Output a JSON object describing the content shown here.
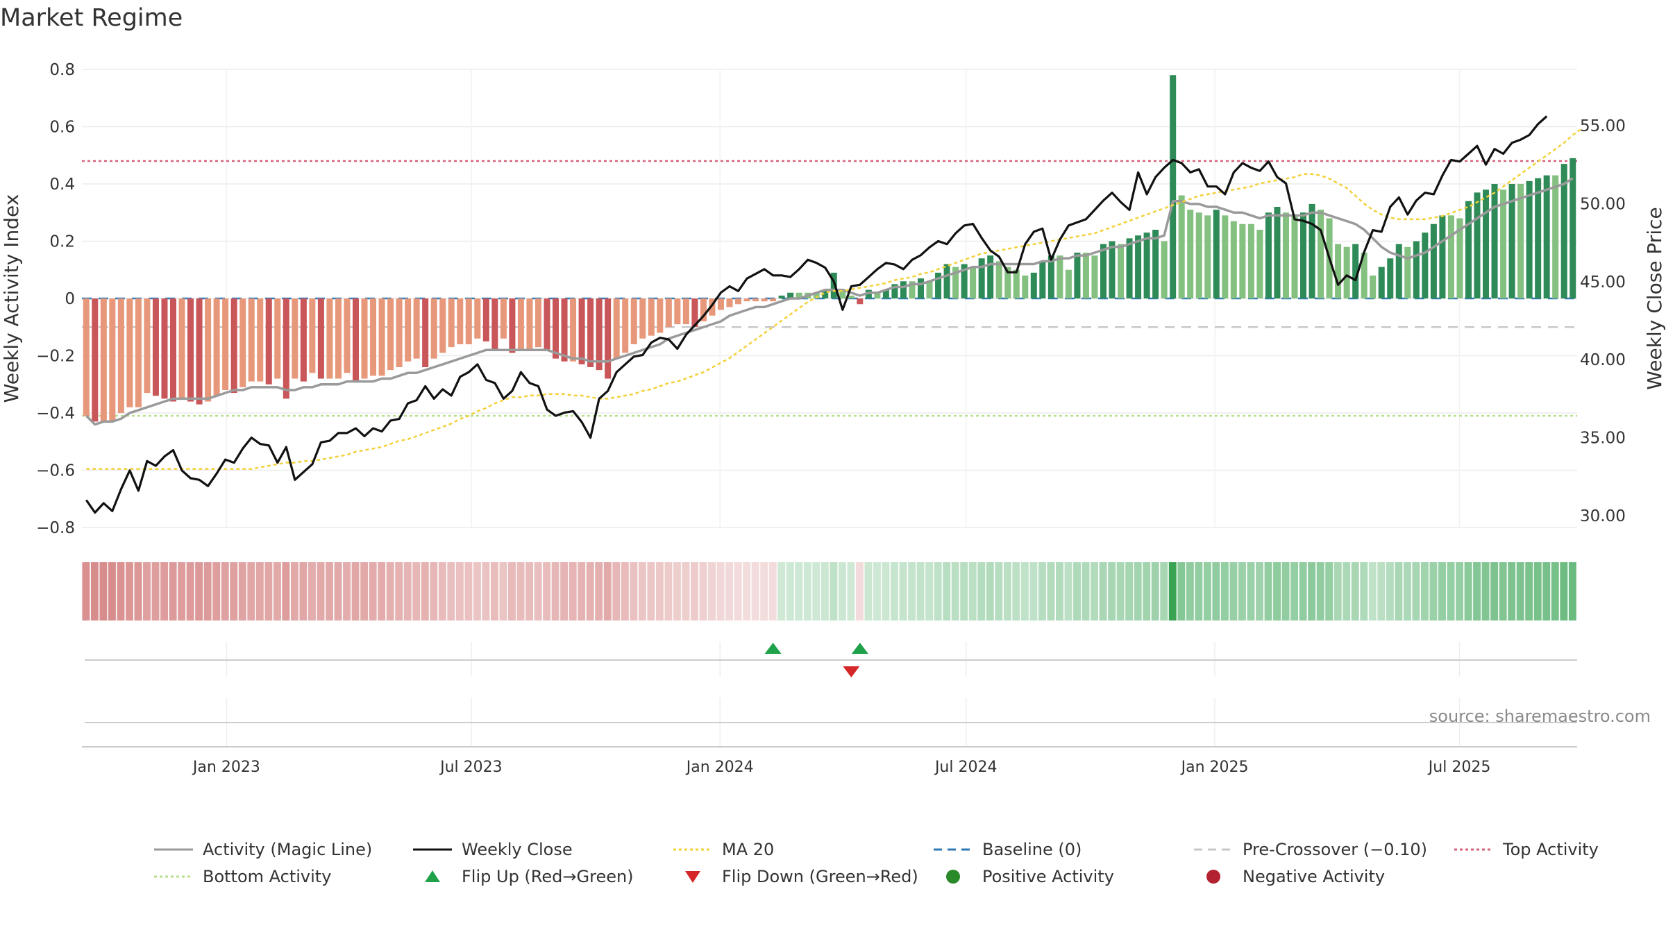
{
  "title": "Market Regime",
  "source_text": "source: sharemaestro.com",
  "chart_data": {
    "type": "bar",
    "title": "Market Regime",
    "ylabel": "Weekly Activity Index",
    "y2label": "Weekly Close Price",
    "ylim": [
      -0.8,
      0.8
    ],
    "y2lim": [
      30,
      55
    ],
    "yticks": [
      "0.8",
      "0.6",
      "0.4",
      "0.2",
      "0",
      "−0.2",
      "−0.4",
      "−0.6",
      "−0.8"
    ],
    "y2ticks": [
      "55.00",
      "50.00",
      "45.00",
      "40.00",
      "35.00",
      "30.00"
    ],
    "x_ticks": [
      "Jan 2023",
      "Jul 2023",
      "Jan 2024",
      "Jul 2024",
      "Jan 2025",
      "Jul 2025"
    ],
    "x_start": "2022-09-16",
    "x_end": "2025-09-26",
    "grid": true,
    "legend_position": "bottom",
    "reference_lines": {
      "baseline": 0,
      "pre_crossover": -0.1,
      "top_activity": 0.48,
      "bottom_activity": -0.41
    },
    "colors": {
      "strong_negative": "#c95658",
      "weak_negative": "#e8987a",
      "weak_positive": "#84c07f",
      "strong_positive": "#2e8b57",
      "magic_line": "#9a9a9a",
      "weekly_close": "#111111",
      "ma20": "#f2d13a",
      "baseline": "#2f78b5",
      "pre_crossover": "#c8c8c8",
      "top_activity": "#d6607a",
      "bottom_activity": "#b5df8a",
      "flip_up": "#1fa24a",
      "flip_down": "#d62728"
    },
    "series": [
      {
        "name": "Weekly Activity Index",
        "values": [
          -0.41,
          -0.43,
          -0.43,
          -0.43,
          -0.4,
          -0.38,
          -0.38,
          -0.33,
          -0.34,
          -0.35,
          -0.36,
          -0.35,
          -0.36,
          -0.37,
          -0.36,
          -0.34,
          -0.32,
          -0.33,
          -0.31,
          -0.29,
          -0.29,
          -0.3,
          -0.28,
          -0.35,
          -0.28,
          -0.29,
          -0.26,
          -0.28,
          -0.28,
          -0.28,
          -0.26,
          -0.29,
          -0.28,
          -0.27,
          -0.27,
          -0.25,
          -0.24,
          -0.22,
          -0.21,
          -0.24,
          -0.21,
          -0.19,
          -0.17,
          -0.16,
          -0.16,
          -0.14,
          -0.15,
          -0.18,
          -0.14,
          -0.19,
          -0.18,
          -0.18,
          -0.17,
          -0.18,
          -0.21,
          -0.22,
          -0.22,
          -0.23,
          -0.24,
          -0.25,
          -0.28,
          -0.21,
          -0.19,
          -0.16,
          -0.14,
          -0.13,
          -0.12,
          -0.1,
          -0.09,
          -0.09,
          -0.1,
          -0.08,
          -0.06,
          -0.04,
          -0.03,
          -0.02,
          -0.01,
          -0.01,
          -0.01,
          -0.01,
          0.01,
          0.02,
          0.02,
          0.02,
          0.02,
          0.03,
          0.09,
          0.03,
          0.01,
          -0.02,
          0.03,
          0.02,
          0.03,
          0.05,
          0.06,
          0.06,
          0.07,
          0.06,
          0.09,
          0.12,
          0.11,
          0.12,
          0.11,
          0.14,
          0.15,
          0.13,
          0.11,
          0.1,
          0.08,
          0.09,
          0.13,
          0.15,
          0.15,
          0.1,
          0.16,
          0.16,
          0.15,
          0.19,
          0.2,
          0.19,
          0.21,
          0.22,
          0.23,
          0.24,
          0.2,
          0.78,
          0.36,
          0.31,
          0.3,
          0.29,
          0.31,
          0.29,
          0.27,
          0.26,
          0.26,
          0.24,
          0.3,
          0.32,
          0.3,
          0.29,
          0.3,
          0.33,
          0.31,
          0.28,
          0.19,
          0.18,
          0.19,
          0.16,
          0.08,
          0.11,
          0.14,
          0.19,
          0.18,
          0.2,
          0.23,
          0.26,
          0.29,
          0.29,
          0.28,
          0.34,
          0.37,
          0.38,
          0.4,
          0.38,
          0.4,
          0.4,
          0.41,
          0.42,
          0.43,
          0.43,
          0.47,
          0.49
        ]
      },
      {
        "name": "Activity (Magic Line)",
        "values": [
          -0.41,
          -0.44,
          -0.43,
          -0.43,
          -0.42,
          -0.4,
          -0.39,
          -0.38,
          -0.37,
          -0.36,
          -0.35,
          -0.35,
          -0.35,
          -0.35,
          -0.35,
          -0.34,
          -0.33,
          -0.32,
          -0.32,
          -0.31,
          -0.31,
          -0.31,
          -0.31,
          -0.32,
          -0.32,
          -0.31,
          -0.31,
          -0.3,
          -0.3,
          -0.3,
          -0.29,
          -0.29,
          -0.29,
          -0.29,
          -0.28,
          -0.28,
          -0.27,
          -0.26,
          -0.26,
          -0.25,
          -0.24,
          -0.23,
          -0.22,
          -0.21,
          -0.2,
          -0.19,
          -0.18,
          -0.18,
          -0.18,
          -0.18,
          -0.18,
          -0.18,
          -0.18,
          -0.18,
          -0.19,
          -0.2,
          -0.21,
          -0.21,
          -0.22,
          -0.22,
          -0.22,
          -0.21,
          -0.2,
          -0.19,
          -0.18,
          -0.17,
          -0.16,
          -0.14,
          -0.13,
          -0.12,
          -0.11,
          -0.1,
          -0.09,
          -0.08,
          -0.06,
          -0.05,
          -0.04,
          -0.03,
          -0.03,
          -0.02,
          -0.01,
          -0.0,
          0.0,
          0.01,
          0.02,
          0.03,
          0.03,
          0.03,
          0.02,
          0.01,
          0.02,
          0.02,
          0.03,
          0.04,
          0.04,
          0.05,
          0.05,
          0.06,
          0.07,
          0.08,
          0.09,
          0.1,
          0.11,
          0.11,
          0.12,
          0.12,
          0.12,
          0.12,
          0.12,
          0.12,
          0.13,
          0.13,
          0.14,
          0.14,
          0.15,
          0.15,
          0.16,
          0.17,
          0.18,
          0.18,
          0.19,
          0.2,
          0.21,
          0.21,
          0.22,
          0.34,
          0.34,
          0.33,
          0.33,
          0.32,
          0.32,
          0.31,
          0.3,
          0.3,
          0.29,
          0.28,
          0.29,
          0.29,
          0.29,
          0.29,
          0.29,
          0.3,
          0.3,
          0.29,
          0.28,
          0.27,
          0.26,
          0.24,
          0.21,
          0.18,
          0.16,
          0.15,
          0.14,
          0.15,
          0.16,
          0.18,
          0.2,
          0.22,
          0.24,
          0.26,
          0.28,
          0.3,
          0.32,
          0.33,
          0.34,
          0.35,
          0.36,
          0.37,
          0.38,
          0.39,
          0.4,
          0.42
        ]
      },
      {
        "name": "Weekly Close",
        "values": [
          31.0,
          30.2,
          30.8,
          30.3,
          31.7,
          32.9,
          31.6,
          33.5,
          33.2,
          33.8,
          34.2,
          32.9,
          32.4,
          32.3,
          31.9,
          32.7,
          33.6,
          33.4,
          34.3,
          35.0,
          34.6,
          34.5,
          33.4,
          34.4,
          32.3,
          32.8,
          33.3,
          34.7,
          34.8,
          35.3,
          35.3,
          35.6,
          35.1,
          35.6,
          35.4,
          36.1,
          36.2,
          37.2,
          37.4,
          38.3,
          37.5,
          38.1,
          37.7,
          38.9,
          39.2,
          39.7,
          38.7,
          38.5,
          37.5,
          38.0,
          39.2,
          38.5,
          38.3,
          36.8,
          36.4,
          36.6,
          36.7,
          36.0,
          35.0,
          37.5,
          38.0,
          39.2,
          39.7,
          40.2,
          40.3,
          41.1,
          41.4,
          41.3,
          40.7,
          41.6,
          42.2,
          42.8,
          43.5,
          44.3,
          44.7,
          44.4,
          45.2,
          45.5,
          45.8,
          45.4,
          45.4,
          45.3,
          45.8,
          46.4,
          46.2,
          45.9,
          45.0,
          43.2,
          44.7,
          44.8,
          45.3,
          45.8,
          46.2,
          46.1,
          45.8,
          46.4,
          46.7,
          47.2,
          47.6,
          47.4,
          48.1,
          48.6,
          48.7,
          47.8,
          47.0,
          46.6,
          45.6,
          45.6,
          47.4,
          48.2,
          48.4,
          46.4,
          47.7,
          48.6,
          48.8,
          49.0,
          49.6,
          50.2,
          50.7,
          50.1,
          49.6,
          52.0,
          50.6,
          51.7,
          52.3,
          52.8,
          52.6,
          52.0,
          52.2,
          51.1,
          51.1,
          50.6,
          52.0,
          52.6,
          52.3,
          52.1,
          52.7,
          51.7,
          51.3,
          49.0,
          48.9,
          48.7,
          48.3,
          46.5,
          44.8,
          45.4,
          45.1,
          46.9,
          48.3,
          48.2,
          49.8,
          50.4,
          49.3,
          50.2,
          50.7,
          50.6,
          51.8,
          52.8,
          52.7,
          53.2,
          53.7,
          52.5,
          53.5,
          53.2,
          53.9,
          54.1,
          54.4,
          55.1,
          55.6
        ]
      },
      {
        "name": "MA 20",
        "values": [
          33.0,
          33.0,
          33.0,
          33.0,
          33.0,
          33.0,
          33.0,
          33.0,
          33.0,
          33.0,
          33.0,
          33.0,
          33.0,
          33.0,
          33.0,
          33.0,
          33.0,
          33.0,
          33.0,
          33.0,
          33.1,
          33.2,
          33.3,
          33.4,
          33.4,
          33.5,
          33.5,
          33.6,
          33.7,
          33.8,
          33.9,
          34.1,
          34.2,
          34.3,
          34.4,
          34.6,
          34.8,
          34.9,
          35.1,
          35.3,
          35.5,
          35.7,
          35.9,
          36.2,
          36.4,
          36.7,
          36.9,
          37.2,
          37.4,
          37.6,
          37.6,
          37.7,
          37.7,
          37.8,
          37.8,
          37.8,
          37.7,
          37.7,
          37.6,
          37.5,
          37.5,
          37.6,
          37.7,
          37.8,
          38.0,
          38.1,
          38.3,
          38.5,
          38.6,
          38.8,
          39.0,
          39.2,
          39.5,
          39.8,
          40.1,
          40.5,
          40.9,
          41.3,
          41.7,
          42.1,
          42.5,
          42.9,
          43.3,
          43.7,
          44.0,
          44.3,
          44.4,
          44.4,
          44.5,
          44.6,
          44.7,
          44.8,
          44.9,
          45.1,
          45.2,
          45.3,
          45.5,
          45.6,
          45.8,
          46.0,
          46.2,
          46.4,
          46.6,
          46.8,
          46.9,
          47.0,
          47.1,
          47.2,
          47.3,
          47.4,
          47.5,
          47.6,
          47.7,
          47.8,
          47.9,
          48.0,
          48.1,
          48.3,
          48.5,
          48.7,
          48.9,
          49.1,
          49.3,
          49.5,
          49.7,
          49.9,
          50.1,
          50.3,
          50.5,
          50.6,
          50.7,
          50.8,
          50.9,
          51.0,
          51.1,
          51.3,
          51.4,
          51.5,
          51.6,
          51.7,
          51.9,
          51.9,
          51.8,
          51.6,
          51.3,
          51.0,
          50.5,
          50.0,
          49.6,
          49.3,
          49.1,
          49.0,
          49.0,
          49.0,
          49.0,
          49.1,
          49.2,
          49.4,
          49.6,
          49.8,
          50.1,
          50.4,
          50.7,
          51.1,
          51.5,
          51.9,
          52.3,
          52.7,
          53.1,
          53.5,
          53.9,
          54.4,
          54.8
        ]
      }
    ],
    "flip_up_weeks": [
      79,
      89
    ],
    "flip_down_weeks": [
      88
    ]
  },
  "legend": [
    {
      "label": "Activity (Magic Line)",
      "kind": "line",
      "color": "#9a9a9a",
      "dash": ""
    },
    {
      "label": "Weekly Close",
      "kind": "line",
      "color": "#111111",
      "dash": ""
    },
    {
      "label": "MA 20",
      "kind": "line",
      "color": "#f2d13a",
      "dash": "4 4"
    },
    {
      "label": "Baseline (0)",
      "kind": "line",
      "color": "#2f78b5",
      "dash": "12 8"
    },
    {
      "label": "Pre-Crossover (−0.10)",
      "kind": "line",
      "color": "#c8c8c8",
      "dash": "12 8"
    },
    {
      "label": "Top Activity",
      "kind": "line",
      "color": "#d6607a",
      "dash": "4 4"
    },
    {
      "label": "Bottom Activity",
      "kind": "line",
      "color": "#b5df8a",
      "dash": "4 4"
    },
    {
      "label": "Flip Up (Red→Green)",
      "kind": "tri-up",
      "color": "#1fa24a"
    },
    {
      "label": "Flip Down (Green→Red)",
      "kind": "tri-down",
      "color": "#d62728"
    },
    {
      "label": "Positive Activity",
      "kind": "dot",
      "color": "#2a8a2a"
    },
    {
      "label": "Negative Activity",
      "kind": "dot",
      "color": "#b22230"
    }
  ]
}
